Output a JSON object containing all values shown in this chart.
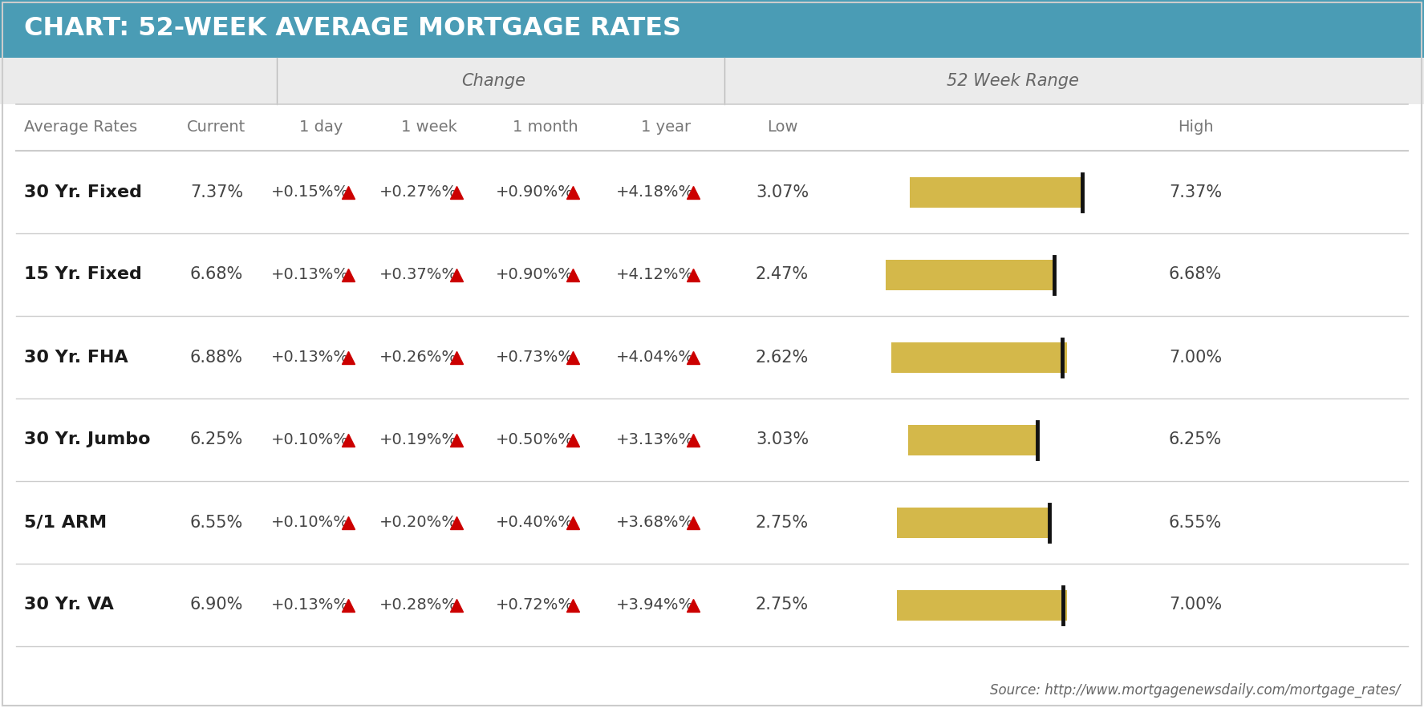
{
  "title": "CHART: 52-WEEK AVERAGE MORTGAGE RATES",
  "title_bg_color": "#4a9cb5",
  "title_text_color": "#ffffff",
  "group_header_bg_color": "#ebebeb",
  "source_text": "Source: http://www.mortgagenewsdaily.com/mortgage_rates/",
  "col_group1_label": "Change",
  "col_group2_label": "52 Week Range",
  "rows": [
    {
      "name": "30 Yr. Fixed",
      "current": "7.37%",
      "day": "+0.15%",
      "week": "+0.27%",
      "month": "+0.90%",
      "year": "+4.18%",
      "low": "3.07%",
      "high": "7.37%",
      "low_val": 3.07,
      "high_val": 7.37,
      "current_val": 7.37
    },
    {
      "name": "15 Yr. Fixed",
      "current": "6.68%",
      "day": "+0.13%",
      "week": "+0.37%",
      "month": "+0.90%",
      "year": "+4.12%",
      "low": "2.47%",
      "high": "6.68%",
      "low_val": 2.47,
      "high_val": 6.68,
      "current_val": 6.68
    },
    {
      "name": "30 Yr. FHA",
      "current": "6.88%",
      "day": "+0.13%",
      "week": "+0.26%",
      "month": "+0.73%",
      "year": "+4.04%",
      "low": "2.62%",
      "high": "7.00%",
      "low_val": 2.62,
      "high_val": 7.0,
      "current_val": 6.88
    },
    {
      "name": "30 Yr. Jumbo",
      "current": "6.25%",
      "day": "+0.10%",
      "week": "+0.19%",
      "month": "+0.50%",
      "year": "+3.13%",
      "low": "3.03%",
      "high": "6.25%",
      "low_val": 3.03,
      "high_val": 6.25,
      "current_val": 6.25
    },
    {
      "name": "5/1 ARM",
      "current": "6.55%",
      "day": "+0.10%",
      "week": "+0.20%",
      "month": "+0.40%",
      "year": "+3.68%",
      "low": "2.75%",
      "high": "6.55%",
      "low_val": 2.75,
      "high_val": 6.55,
      "current_val": 6.55
    },
    {
      "name": "30 Yr. VA",
      "current": "6.90%",
      "day": "+0.13%",
      "week": "+0.28%",
      "month": "+0.72%",
      "year": "+3.94%",
      "low": "2.75%",
      "high": "7.00%",
      "low_val": 2.75,
      "high_val": 7.0,
      "current_val": 6.9
    }
  ],
  "bar_color": "#d4b84a",
  "divider_color": "#111111",
  "arrow_color": "#cc0000",
  "row_line_color": "#cccccc",
  "col_header_text_color": "#777777",
  "row_name_color": "#1a1a1a",
  "cell_text_color": "#444444",
  "global_low": 2.0,
  "global_high": 8.0
}
